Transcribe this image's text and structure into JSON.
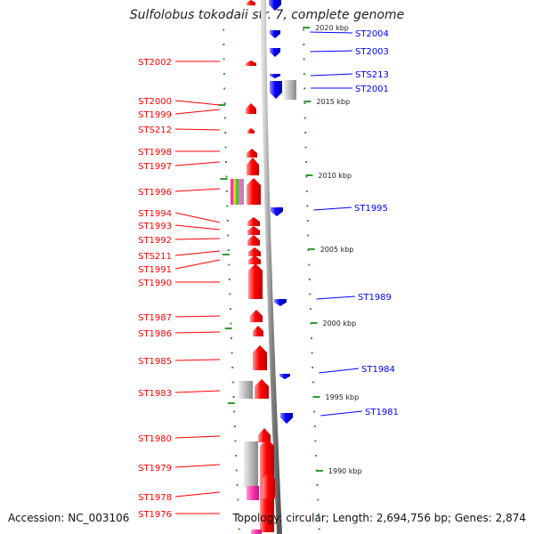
{
  "title": "Sulfolobus tokodaii str. 7, complete genome",
  "footer": {
    "accession": "Accession: NC_003106",
    "topology": "Topology: circular; Length: 2,694,756 bp; Genes: 2,874"
  },
  "colors": {
    "forward_gene": "#ff0000",
    "reverse_gene": "#0000ff",
    "backbone": "#999999",
    "tick": "#339933",
    "grey_feature": "#bbbbbb",
    "pink_feature": "#ff33aa"
  },
  "scale_labels": [
    "2020 kbp",
    "2015 kbp",
    "2010 kbp",
    "2005 kbp",
    "2000 kbp",
    "1995 kbp",
    "1990 kbp"
  ],
  "left_genes": [
    "ST2002",
    "ST2000",
    "ST1999",
    "STS212",
    "ST1998",
    "ST1997",
    "ST1996",
    "ST1994",
    "ST1993",
    "ST1992",
    "STS211",
    "ST1991",
    "ST1990",
    "ST1987",
    "ST1986",
    "ST1985",
    "ST1983",
    "ST1980",
    "ST1979",
    "ST1978",
    "ST1976"
  ],
  "right_genes": [
    "ST2004",
    "ST2003",
    "STS213",
    "ST2001",
    "ST1995",
    "ST1989",
    "ST1984",
    "ST1981"
  ]
}
